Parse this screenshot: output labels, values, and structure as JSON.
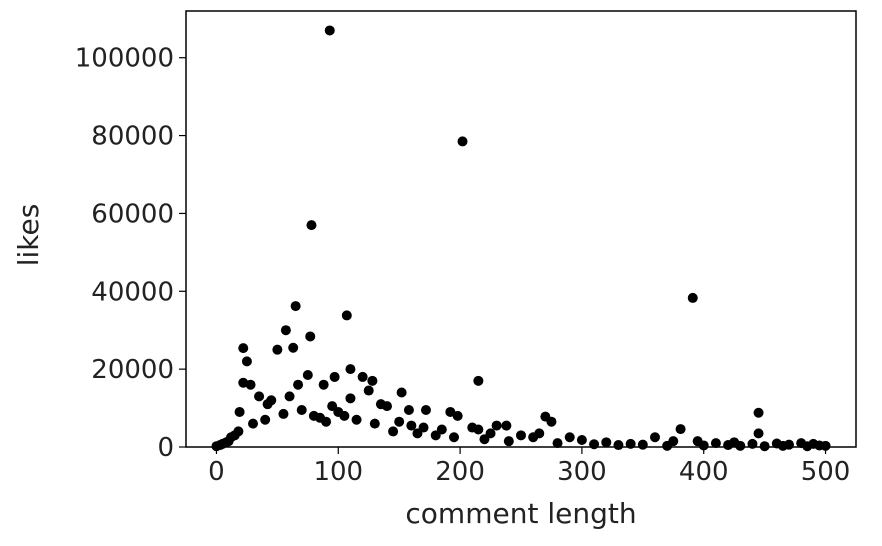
{
  "chart_data": {
    "type": "scatter",
    "title": "",
    "xlabel": "comment length",
    "ylabel": "likes",
    "xlim": [
      -25,
      525
    ],
    "ylim": [
      0,
      112000
    ],
    "xticks": [
      0,
      100,
      200,
      300,
      400,
      500
    ],
    "yticks": [
      0,
      20000,
      40000,
      60000,
      80000,
      100000
    ],
    "grid": false,
    "marker_color": "#000000",
    "series": [
      {
        "points": [
          [
            93,
            107000
          ],
          [
            202,
            78500
          ],
          [
            78,
            57000
          ],
          [
            391,
            38300
          ],
          [
            65,
            36200
          ],
          [
            107,
            33800
          ],
          [
            57,
            30000
          ],
          [
            63,
            25500
          ],
          [
            77,
            28400
          ],
          [
            22,
            25400
          ],
          [
            50,
            25000
          ],
          [
            25,
            22000
          ],
          [
            110,
            20000
          ],
          [
            120,
            18000
          ],
          [
            97,
            18000
          ],
          [
            215,
            17000
          ],
          [
            22,
            16500
          ],
          [
            28,
            16000
          ],
          [
            75,
            18500
          ],
          [
            88,
            16000
          ],
          [
            152,
            14000
          ],
          [
            125,
            14500
          ],
          [
            110,
            12500
          ],
          [
            60,
            13000
          ],
          [
            35,
            13000
          ],
          [
            45,
            12000
          ],
          [
            135,
            11000
          ],
          [
            140,
            10500
          ],
          [
            158,
            9500
          ],
          [
            172,
            9500
          ],
          [
            192,
            9000
          ],
          [
            198,
            8000
          ],
          [
            19,
            9000
          ],
          [
            270,
            7800
          ],
          [
            275,
            6500
          ],
          [
            445,
            8800
          ],
          [
            381,
            4600
          ],
          [
            445,
            3500
          ],
          [
            100,
            9000
          ],
          [
            105,
            8000
          ],
          [
            85,
            7500
          ],
          [
            115,
            7000
          ],
          [
            130,
            6000
          ],
          [
            170,
            5000
          ],
          [
            210,
            5000
          ],
          [
            230,
            5500
          ],
          [
            238,
            5500
          ],
          [
            250,
            3000
          ],
          [
            260,
            2500
          ],
          [
            290,
            2500
          ],
          [
            300,
            1800
          ],
          [
            320,
            1200
          ],
          [
            340,
            800
          ],
          [
            360,
            2500
          ],
          [
            375,
            1500
          ],
          [
            395,
            1500
          ],
          [
            410,
            1000
          ],
          [
            425,
            1200
          ],
          [
            440,
            800
          ],
          [
            460,
            900
          ],
          [
            470,
            600
          ],
          [
            480,
            1000
          ],
          [
            490,
            800
          ],
          [
            495,
            400
          ],
          [
            500,
            300
          ],
          [
            0,
            200
          ],
          [
            3,
            500
          ],
          [
            5,
            800
          ],
          [
            8,
            1200
          ],
          [
            10,
            1500
          ],
          [
            12,
            2500
          ],
          [
            15,
            3000
          ],
          [
            18,
            4000
          ],
          [
            30,
            6000
          ],
          [
            40,
            7000
          ],
          [
            55,
            8500
          ],
          [
            70,
            9500
          ],
          [
            80,
            8000
          ],
          [
            90,
            6500
          ],
          [
            95,
            10500
          ],
          [
            145,
            4000
          ],
          [
            180,
            3000
          ],
          [
            220,
            2000
          ],
          [
            240,
            1500
          ],
          [
            280,
            1000
          ],
          [
            310,
            700
          ],
          [
            330,
            500
          ],
          [
            350,
            600
          ],
          [
            370,
            300
          ],
          [
            400,
            400
          ],
          [
            420,
            500
          ],
          [
            430,
            300
          ],
          [
            450,
            200
          ],
          [
            465,
            300
          ],
          [
            485,
            200
          ],
          [
            215,
            4500
          ],
          [
            225,
            3500
          ],
          [
            150,
            6500
          ],
          [
            160,
            5500
          ],
          [
            165,
            3500
          ],
          [
            185,
            4500
          ],
          [
            195,
            2500
          ],
          [
            265,
            3500
          ],
          [
            128,
            17000
          ],
          [
            67,
            16000
          ],
          [
            42,
            11000
          ]
        ]
      }
    ]
  }
}
